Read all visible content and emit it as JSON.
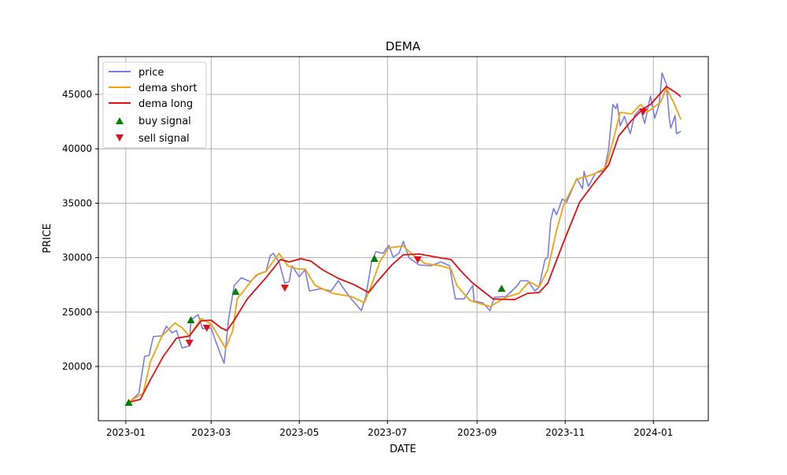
{
  "chart_data": {
    "type": "line",
    "title": "DEMA",
    "xlabel": "DATE",
    "ylabel": "PRICE",
    "x_unit": "days since 2023-01-01",
    "xlim": [
      -19,
      403
    ],
    "ylim": [
      15015,
      48470
    ],
    "grid": true,
    "legend_placement": "top-left",
    "x_ticks": [
      {
        "day": 0,
        "label": "2023-01"
      },
      {
        "day": 59,
        "label": "2023-03"
      },
      {
        "day": 120,
        "label": "2023-05"
      },
      {
        "day": 181,
        "label": "2023-07"
      },
      {
        "day": 243,
        "label": "2023-09"
      },
      {
        "day": 304,
        "label": "2023-11"
      },
      {
        "day": 365,
        "label": "2024-01"
      }
    ],
    "y_ticks": [
      20000,
      25000,
      30000,
      35000,
      40000,
      45000
    ],
    "series": [
      {
        "name": "price",
        "color": "#7b7bea",
        "points": [
          [
            2,
            16680
          ],
          [
            9,
            17540
          ],
          [
            13,
            20940
          ],
          [
            16,
            21000
          ],
          [
            19,
            22750
          ],
          [
            25,
            22820
          ],
          [
            28,
            23700
          ],
          [
            32,
            23100
          ],
          [
            35,
            23300
          ],
          [
            39,
            21700
          ],
          [
            44,
            21900
          ],
          [
            45,
            24260
          ],
          [
            50,
            24770
          ],
          [
            53,
            23470
          ],
          [
            59,
            23550
          ],
          [
            62,
            22380
          ],
          [
            66,
            20940
          ],
          [
            68,
            20300
          ],
          [
            71,
            24270
          ],
          [
            75,
            27440
          ],
          [
            80,
            28160
          ],
          [
            86,
            27800
          ],
          [
            92,
            28530
          ],
          [
            97,
            28740
          ],
          [
            100,
            30190
          ],
          [
            102,
            30400
          ],
          [
            106,
            29600
          ],
          [
            110,
            27660
          ],
          [
            113,
            27800
          ],
          [
            115,
            29250
          ],
          [
            120,
            28240
          ],
          [
            124,
            28900
          ],
          [
            127,
            26940
          ],
          [
            135,
            27150
          ],
          [
            142,
            26940
          ],
          [
            147,
            27880
          ],
          [
            153,
            26720
          ],
          [
            156,
            26210
          ],
          [
            163,
            25130
          ],
          [
            166,
            26430
          ],
          [
            170,
            29600
          ],
          [
            173,
            30550
          ],
          [
            178,
            30400
          ],
          [
            182,
            31130
          ],
          [
            185,
            30040
          ],
          [
            189,
            30400
          ],
          [
            192,
            31490
          ],
          [
            196,
            29970
          ],
          [
            203,
            29320
          ],
          [
            211,
            29250
          ],
          [
            218,
            29610
          ],
          [
            224,
            29250
          ],
          [
            228,
            26210
          ],
          [
            234,
            26210
          ],
          [
            240,
            27440
          ],
          [
            241,
            26000
          ],
          [
            247,
            25850
          ],
          [
            252,
            25130
          ],
          [
            255,
            26360
          ],
          [
            263,
            26430
          ],
          [
            271,
            27440
          ],
          [
            273,
            27880
          ],
          [
            278,
            27880
          ],
          [
            283,
            26940
          ],
          [
            286,
            27300
          ],
          [
            288,
            28600
          ],
          [
            290,
            29830
          ],
          [
            292,
            30040
          ],
          [
            294,
            33440
          ],
          [
            296,
            34520
          ],
          [
            298,
            33950
          ],
          [
            302,
            35390
          ],
          [
            305,
            35100
          ],
          [
            312,
            37270
          ],
          [
            316,
            36330
          ],
          [
            317,
            37920
          ],
          [
            320,
            36550
          ],
          [
            325,
            37780
          ],
          [
            331,
            38000
          ],
          [
            334,
            39950
          ],
          [
            337,
            44070
          ],
          [
            339,
            43700
          ],
          [
            340,
            44140
          ],
          [
            342,
            42120
          ],
          [
            345,
            42980
          ],
          [
            349,
            41390
          ],
          [
            352,
            43050
          ],
          [
            356,
            43700
          ],
          [
            359,
            42330
          ],
          [
            363,
            44860
          ],
          [
            366,
            42830
          ],
          [
            369,
            44070
          ],
          [
            371,
            46960
          ],
          [
            374,
            45940
          ],
          [
            376,
            42830
          ],
          [
            377,
            41900
          ],
          [
            380,
            43050
          ],
          [
            381,
            41390
          ],
          [
            384,
            41610
          ]
        ]
      },
      {
        "name": "dema short",
        "color": "#f0a30a",
        "points": [
          [
            1,
            16680
          ],
          [
            12,
            17540
          ],
          [
            17,
            20430
          ],
          [
            25,
            22800
          ],
          [
            34,
            24000
          ],
          [
            39,
            23550
          ],
          [
            44,
            22800
          ],
          [
            52,
            24400
          ],
          [
            59,
            23900
          ],
          [
            64,
            22800
          ],
          [
            69,
            21660
          ],
          [
            74,
            23300
          ],
          [
            77,
            26200
          ],
          [
            90,
            28380
          ],
          [
            97,
            28740
          ],
          [
            106,
            30400
          ],
          [
            112,
            29250
          ],
          [
            119,
            28960
          ],
          [
            124,
            28960
          ],
          [
            131,
            27440
          ],
          [
            143,
            26720
          ],
          [
            156,
            26430
          ],
          [
            165,
            25850
          ],
          [
            170,
            27510
          ],
          [
            176,
            29680
          ],
          [
            182,
            30910
          ],
          [
            192,
            31060
          ],
          [
            198,
            30330
          ],
          [
            207,
            29460
          ],
          [
            218,
            29250
          ],
          [
            225,
            28960
          ],
          [
            229,
            27440
          ],
          [
            238,
            26070
          ],
          [
            252,
            25500
          ],
          [
            263,
            26360
          ],
          [
            272,
            26720
          ],
          [
            279,
            27800
          ],
          [
            286,
            27300
          ],
          [
            292,
            28900
          ],
          [
            298,
            32500
          ],
          [
            303,
            34880
          ],
          [
            312,
            37200
          ],
          [
            323,
            37630
          ],
          [
            332,
            38280
          ],
          [
            338,
            41170
          ],
          [
            342,
            43340
          ],
          [
            350,
            43200
          ],
          [
            356,
            44060
          ],
          [
            361,
            43400
          ],
          [
            370,
            44280
          ],
          [
            374,
            45580
          ],
          [
            379,
            44280
          ],
          [
            384,
            42690
          ]
        ]
      },
      {
        "name": "dema long",
        "color": "#e01010",
        "points": [
          [
            1,
            16680
          ],
          [
            10,
            16970
          ],
          [
            17,
            18770
          ],
          [
            26,
            20940
          ],
          [
            35,
            22600
          ],
          [
            44,
            22800
          ],
          [
            52,
            24190
          ],
          [
            59,
            24260
          ],
          [
            66,
            23540
          ],
          [
            70,
            23300
          ],
          [
            75,
            24260
          ],
          [
            84,
            26210
          ],
          [
            97,
            28160
          ],
          [
            107,
            29830
          ],
          [
            113,
            29610
          ],
          [
            121,
            29900
          ],
          [
            128,
            29680
          ],
          [
            136,
            28890
          ],
          [
            147,
            28090
          ],
          [
            158,
            27510
          ],
          [
            168,
            26790
          ],
          [
            174,
            27800
          ],
          [
            184,
            29320
          ],
          [
            192,
            30260
          ],
          [
            203,
            30330
          ],
          [
            218,
            29970
          ],
          [
            225,
            29830
          ],
          [
            233,
            28600
          ],
          [
            240,
            27660
          ],
          [
            254,
            26210
          ],
          [
            269,
            26140
          ],
          [
            278,
            26720
          ],
          [
            286,
            26790
          ],
          [
            292,
            27660
          ],
          [
            303,
            31490
          ],
          [
            314,
            35100
          ],
          [
            325,
            37050
          ],
          [
            334,
            38500
          ],
          [
            341,
            41170
          ],
          [
            350,
            42620
          ],
          [
            358,
            43700
          ],
          [
            363,
            44060
          ],
          [
            374,
            45720
          ],
          [
            380,
            45220
          ],
          [
            384,
            44790
          ]
        ]
      }
    ],
    "signals": {
      "buy": {
        "name": "buy signal",
        "color": "#008000",
        "points": [
          [
            2,
            16680
          ],
          [
            45,
            24260
          ],
          [
            76,
            26870
          ],
          [
            172,
            29900
          ],
          [
            260,
            27150
          ]
        ]
      },
      "sell": {
        "name": "sell signal",
        "color": "#e01020",
        "points": [
          [
            44,
            22170
          ],
          [
            56,
            23540
          ],
          [
            110,
            27230
          ],
          [
            202,
            29830
          ],
          [
            358,
            43410
          ]
        ]
      }
    }
  }
}
